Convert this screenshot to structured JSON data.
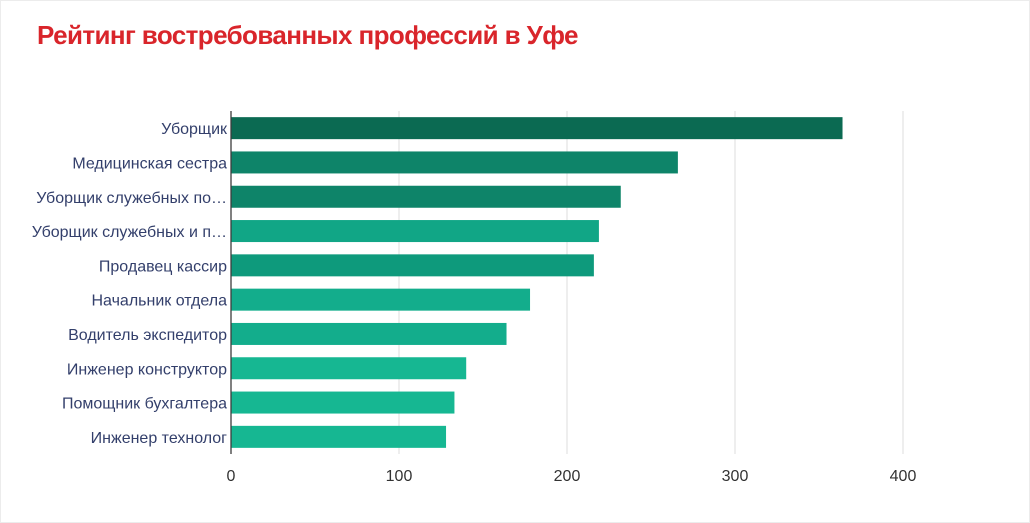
{
  "chart_data": {
    "type": "bar",
    "orientation": "horizontal",
    "title": "Рейтинг востребованных профессий в Уфе",
    "xlabel": "",
    "ylabel": "",
    "categories": [
      "Уборщик",
      "Медицинская сестра",
      "Уборщик служебных по…",
      "Уборщик служебных и п…",
      "Продавец кассир",
      "Начальник отдела",
      "Водитель экспедитор",
      "Инженер конструктор",
      "Помощник бухгалтера",
      "Инженер технолог"
    ],
    "values": [
      364,
      266,
      232,
      219,
      216,
      178,
      164,
      140,
      133,
      128
    ],
    "bar_colors": [
      "#0b6a52",
      "#0e8469",
      "#0e8469",
      "#11a686",
      "#0e9a7c",
      "#13ad8c",
      "#13ad8c",
      "#16b792",
      "#16b792",
      "#16b792"
    ],
    "xlim": [
      0,
      400
    ],
    "xticks": [
      0,
      100,
      200,
      300,
      400
    ],
    "grid": true,
    "legend": "none"
  }
}
